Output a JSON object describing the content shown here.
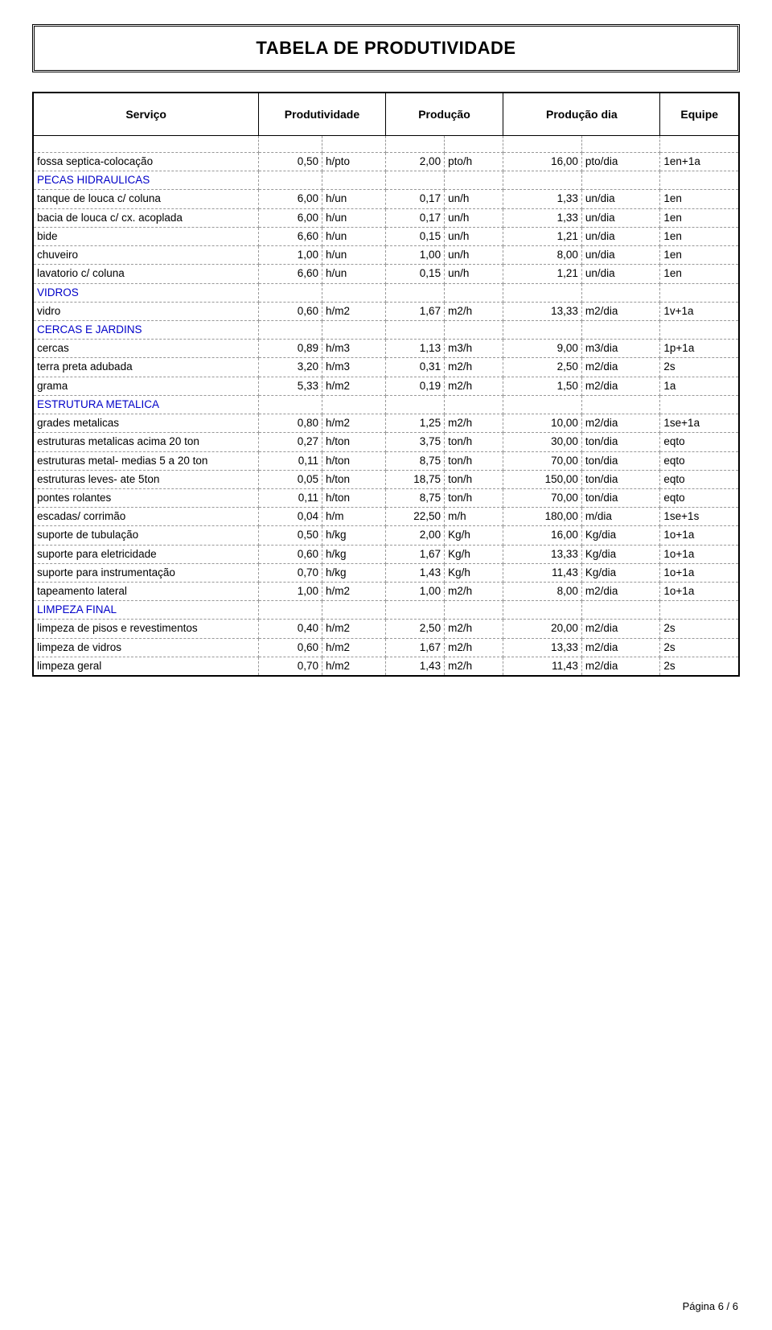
{
  "title": "TABELA DE PRODUTIVIDADE",
  "headers": {
    "servico": "Serviço",
    "produtividade": "Produtividade",
    "producao": "Produção",
    "producao_dia": "Produção dia",
    "equipe": "Equipe"
  },
  "footer": "Página 6 / 6",
  "colors": {
    "section": "#0000c8",
    "border_solid": "#000000",
    "border_dashed": "#999999",
    "background": "#ffffff",
    "text": "#000000"
  },
  "rows": [
    {
      "type": "blank"
    },
    {
      "type": "data",
      "label": "fossa septica-colocação",
      "prod_v": "0,50",
      "prod_u": "h/pto",
      "rate_v": "2,00",
      "rate_u": "pto/h",
      "day_v": "16,00",
      "day_u": "pto/dia",
      "equipe": "1en+1a"
    },
    {
      "type": "section",
      "label": "PECAS HIDRAULICAS"
    },
    {
      "type": "data",
      "label": "tanque de louca c/ coluna",
      "prod_v": "6,00",
      "prod_u": "h/un",
      "rate_v": "0,17",
      "rate_u": "un/h",
      "day_v": "1,33",
      "day_u": "un/dia",
      "equipe": "1en"
    },
    {
      "type": "data",
      "label": "bacia de louca c/ cx. acoplada",
      "prod_v": "6,00",
      "prod_u": "h/un",
      "rate_v": "0,17",
      "rate_u": "un/h",
      "day_v": "1,33",
      "day_u": "un/dia",
      "equipe": "1en"
    },
    {
      "type": "data",
      "label": "bide",
      "prod_v": "6,60",
      "prod_u": "h/un",
      "rate_v": "0,15",
      "rate_u": "un/h",
      "day_v": "1,21",
      "day_u": "un/dia",
      "equipe": "1en"
    },
    {
      "type": "data",
      "label": "chuveiro",
      "prod_v": "1,00",
      "prod_u": "h/un",
      "rate_v": "1,00",
      "rate_u": "un/h",
      "day_v": "8,00",
      "day_u": "un/dia",
      "equipe": "1en"
    },
    {
      "type": "data",
      "label": "lavatorio c/ coluna",
      "prod_v": "6,60",
      "prod_u": "h/un",
      "rate_v": "0,15",
      "rate_u": "un/h",
      "day_v": "1,21",
      "day_u": "un/dia",
      "equipe": "1en"
    },
    {
      "type": "section",
      "label": "VIDROS"
    },
    {
      "type": "data",
      "label": "vidro",
      "prod_v": "0,60",
      "prod_u": "h/m2",
      "rate_v": "1,67",
      "rate_u": "m2/h",
      "day_v": "13,33",
      "day_u": "m2/dia",
      "equipe": "1v+1a"
    },
    {
      "type": "section",
      "label": "CERCAS E JARDINS"
    },
    {
      "type": "data",
      "label": "cercas",
      "prod_v": "0,89",
      "prod_u": "h/m3",
      "rate_v": "1,13",
      "rate_u": "m3/h",
      "day_v": "9,00",
      "day_u": "m3/dia",
      "equipe": "1p+1a"
    },
    {
      "type": "data",
      "label": "terra preta adubada",
      "prod_v": "3,20",
      "prod_u": "h/m3",
      "rate_v": "0,31",
      "rate_u": "m2/h",
      "day_v": "2,50",
      "day_u": "m2/dia",
      "equipe": "2s"
    },
    {
      "type": "data",
      "label": "grama",
      "prod_v": "5,33",
      "prod_u": "h/m2",
      "rate_v": "0,19",
      "rate_u": "m2/h",
      "day_v": "1,50",
      "day_u": "m2/dia",
      "equipe": "1a"
    },
    {
      "type": "section",
      "label": "ESTRUTURA METALICA"
    },
    {
      "type": "data",
      "label": "grades metalicas",
      "prod_v": "0,80",
      "prod_u": "h/m2",
      "rate_v": "1,25",
      "rate_u": "m2/h",
      "day_v": "10,00",
      "day_u": "m2/dia",
      "equipe": "1se+1a"
    },
    {
      "type": "data",
      "label": "estruturas metalicas acima 20 ton",
      "prod_v": "0,27",
      "prod_u": "h/ton",
      "rate_v": "3,75",
      "rate_u": "ton/h",
      "day_v": "30,00",
      "day_u": "ton/dia",
      "equipe": "eqto"
    },
    {
      "type": "data",
      "label": "estruturas metal- medias   5 a 20 ton",
      "prod_v": "0,11",
      "prod_u": "h/ton",
      "rate_v": "8,75",
      "rate_u": "ton/h",
      "day_v": "70,00",
      "day_u": "ton/dia",
      "equipe": "eqto"
    },
    {
      "type": "data",
      "label": "estruturas leves- ate 5ton",
      "prod_v": "0,05",
      "prod_u": "h/ton",
      "rate_v": "18,75",
      "rate_u": "ton/h",
      "day_v": "150,00",
      "day_u": "ton/dia",
      "equipe": "eqto"
    },
    {
      "type": "data",
      "label": "pontes rolantes",
      "prod_v": "0,11",
      "prod_u": "h/ton",
      "rate_v": "8,75",
      "rate_u": "ton/h",
      "day_v": "70,00",
      "day_u": "ton/dia",
      "equipe": "eqto"
    },
    {
      "type": "data",
      "label": "escadas/ corrimão",
      "prod_v": "0,04",
      "prod_u": "h/m",
      "rate_v": "22,50",
      "rate_u": "m/h",
      "day_v": "180,00",
      "day_u": "m/dia",
      "equipe": "1se+1s"
    },
    {
      "type": "data",
      "label": "suporte de tubulação",
      "prod_v": "0,50",
      "prod_u": "h/kg",
      "rate_v": "2,00",
      "rate_u": "Kg/h",
      "day_v": "16,00",
      "day_u": "Kg/dia",
      "equipe": "1o+1a"
    },
    {
      "type": "data",
      "label": "suporte para eletricidade",
      "prod_v": "0,60",
      "prod_u": "h/kg",
      "rate_v": "1,67",
      "rate_u": "Kg/h",
      "day_v": "13,33",
      "day_u": "Kg/dia",
      "equipe": "1o+1a"
    },
    {
      "type": "data",
      "label": "suporte para instrumentação",
      "prod_v": "0,70",
      "prod_u": "h/kg",
      "rate_v": "1,43",
      "rate_u": "Kg/h",
      "day_v": "11,43",
      "day_u": "Kg/dia",
      "equipe": "1o+1a"
    },
    {
      "type": "data",
      "label": "tapeamento lateral",
      "prod_v": "1,00",
      "prod_u": "h/m2",
      "rate_v": "1,00",
      "rate_u": "m2/h",
      "day_v": "8,00",
      "day_u": "m2/dia",
      "equipe": "1o+1a"
    },
    {
      "type": "section",
      "label": " LIMPEZA FINAL"
    },
    {
      "type": "data",
      "label": "limpeza de pisos e revestimentos",
      "prod_v": "0,40",
      "prod_u": "h/m2",
      "rate_v": "2,50",
      "rate_u": "m2/h",
      "day_v": "20,00",
      "day_u": "m2/dia",
      "equipe": "2s"
    },
    {
      "type": "data",
      "label": "limpeza de vidros",
      "prod_v": "0,60",
      "prod_u": "h/m2",
      "rate_v": "1,67",
      "rate_u": "m2/h",
      "day_v": "13,33",
      "day_u": "m2/dia",
      "equipe": "2s"
    },
    {
      "type": "data",
      "label": "limpeza geral",
      "prod_v": "0,70",
      "prod_u": "h/m2",
      "rate_v": "1,43",
      "rate_u": "m2/h",
      "day_v": "11,43",
      "day_u": "m2/dia",
      "equipe": "2s"
    }
  ]
}
